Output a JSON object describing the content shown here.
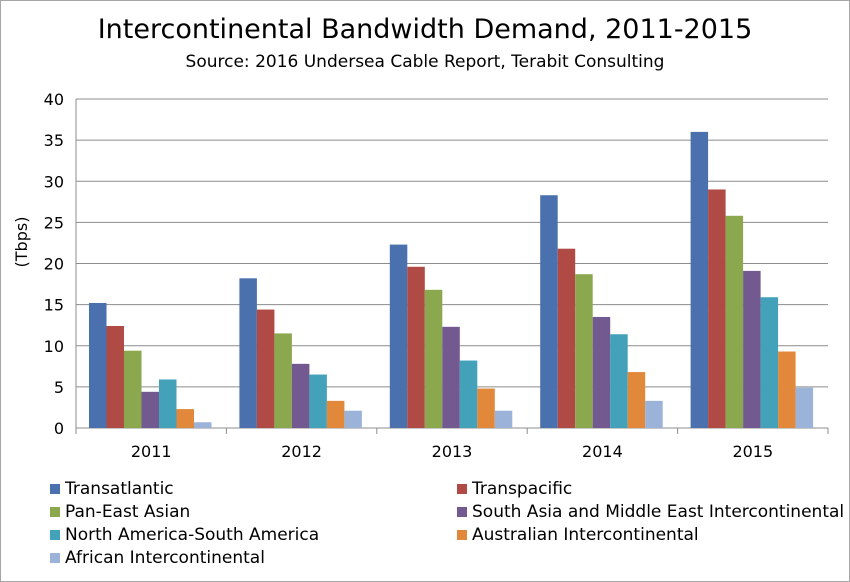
{
  "chart_data": {
    "type": "bar",
    "title": "Intercontinental Bandwidth Demand, 2011-2015",
    "subtitle": "Source: 2016 Undersea Cable Report, Terabit Consulting",
    "ylabel": "(Tbps)",
    "xlabel": "",
    "ylim": [
      0,
      40
    ],
    "yticks": [
      0,
      5,
      10,
      15,
      20,
      25,
      30,
      35,
      40
    ],
    "grid": true,
    "legend_position": "bottom",
    "categories": [
      "2011",
      "2012",
      "2013",
      "2014",
      "2015"
    ],
    "series": [
      {
        "name": "Transatlantic",
        "color": "#4a71ad",
        "values": [
          15.2,
          18.2,
          22.3,
          28.3,
          36.0
        ]
      },
      {
        "name": "Transpacific",
        "color": "#b04a45",
        "values": [
          12.4,
          14.4,
          19.6,
          21.8,
          29.0
        ]
      },
      {
        "name": "Pan-East Asian",
        "color": "#8ba84f",
        "values": [
          9.4,
          11.5,
          16.8,
          18.7,
          25.8
        ]
      },
      {
        "name": "South Asia and Middle East Intercontinental",
        "color": "#72598f",
        "values": [
          4.4,
          7.8,
          12.3,
          13.5,
          19.1
        ]
      },
      {
        "name": "North America-South America",
        "color": "#43a2ba",
        "values": [
          5.9,
          6.5,
          8.2,
          11.4,
          15.9
        ]
      },
      {
        "name": "Australian Intercontinental",
        "color": "#e2883b",
        "values": [
          2.3,
          3.3,
          4.8,
          6.8,
          9.3
        ]
      },
      {
        "name": "African Intercontinental",
        "color": "#9cb3d9",
        "values": [
          0.7,
          2.1,
          2.1,
          3.3,
          4.9
        ]
      }
    ]
  }
}
